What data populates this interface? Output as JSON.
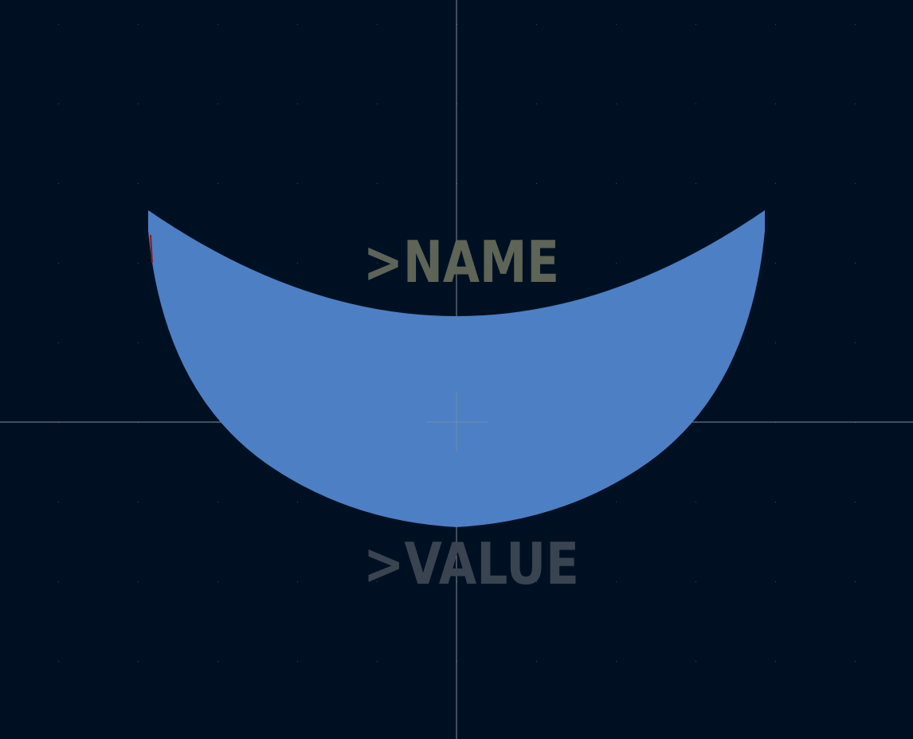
{
  "colors": {
    "background": "#001023",
    "grid_dot": "#3a4a5e",
    "axis": "#b8bec8",
    "copper": "#4d7fc4",
    "name_text": "#5e6456",
    "value_text": "#3a4350",
    "anchor": "#8a96a6"
  },
  "labels": {
    "name": ">NAME",
    "value": ">VALUE"
  }
}
